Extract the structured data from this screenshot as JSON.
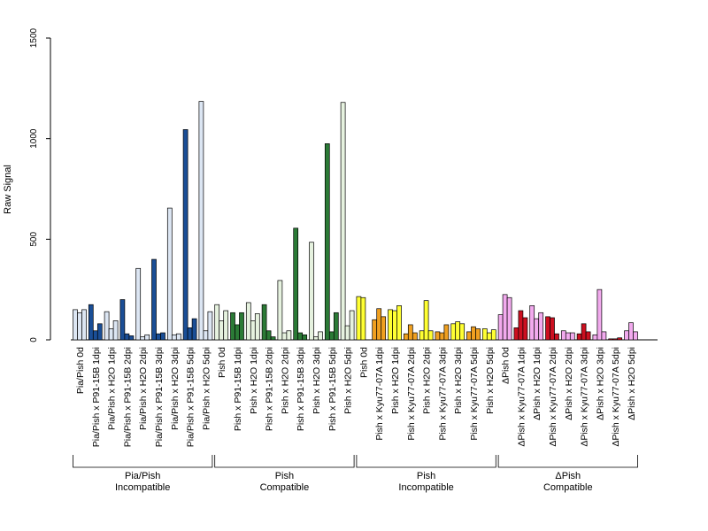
{
  "chart_data": {
    "type": "bar",
    "ylabel": "Raw Signal",
    "ylim": [
      0,
      1500
    ],
    "yticks": [
      0,
      500,
      1000,
      1500
    ],
    "grid": false,
    "categories": [
      "Pia/Pish 0d",
      "Pia/Pish x P91-15B 1dpi",
      "Pia/Pish x H2O 1dpi",
      "Pia/Pish x P91-15B 2dpi",
      "Pia/Pish x H2O 2dpi",
      "Pia/Pish x P91-15B 3dpi",
      "Pia/Pish x H2O 3dpi",
      "Pia/Pish x P91-15B 5dpi",
      "Pia/Pish x H2O 5dpi",
      "Pish 0d",
      "Pish x P91-15B 1dpi",
      "Pish x H2O 1dpi",
      "Pish x P91-15B 2dpi",
      "Pish x H2O 2dpi",
      "Pish x P91-15B 3dpi",
      "Pish x H2O 3dpi",
      "Pish x P91-15B 5dpi",
      "Pish x H2O 5dpi",
      "Pish 0d",
      "Pish x Kyu77-07A 1dpi",
      "Pish x H2O 1dpi",
      "Pish x Kyu77-07A 2dpi",
      "Pish x H2O 2dpi",
      "Pish x Kyu77-07A 3dpi",
      "Pish x H2O 3dpi",
      "Pish x Kyu77-07A 5dpi",
      "Pish x H2O 5dpi",
      "ΔPish 0d",
      "ΔPish x Kyu77-07A 1dpi",
      "ΔPish x H2O 1dpi",
      "ΔPish x Kyu77-07A 2dpi",
      "ΔPish x H2O 2dpi",
      "ΔPish x Kyu77-07A 3dpi",
      "ΔPish x H2O 3dpi",
      "ΔPish x Kyu77-07A 5dpi",
      "ΔPish x H2O 5dpi"
    ],
    "values": [
      [
        150,
        135,
        150
      ],
      [
        175,
        45,
        80
      ],
      [
        140,
        55,
        95
      ],
      [
        200,
        30,
        20
      ],
      [
        355,
        15,
        25
      ],
      [
        400,
        30,
        35
      ],
      [
        655,
        25,
        30
      ],
      [
        1045,
        60,
        105
      ],
      [
        1185,
        45,
        140
      ],
      [
        175,
        95,
        145
      ],
      [
        135,
        75,
        135
      ],
      [
        185,
        95,
        130
      ],
      [
        175,
        45,
        15
      ],
      [
        295,
        35,
        45
      ],
      [
        555,
        35,
        25
      ],
      [
        485,
        15,
        40
      ],
      [
        975,
        40,
        135
      ],
      [
        1180,
        70,
        145
      ],
      [
        215,
        210,
        0
      ],
      [
        100,
        155,
        115
      ],
      [
        150,
        145,
        170
      ],
      [
        30,
        75,
        35
      ],
      [
        45,
        195,
        45
      ],
      [
        40,
        35,
        75
      ],
      [
        80,
        90,
        80
      ],
      [
        40,
        65,
        55
      ],
      [
        55,
        35,
        50
      ],
      [
        125,
        225,
        210
      ],
      [
        60,
        145,
        110
      ],
      [
        170,
        105,
        135
      ],
      [
        115,
        110,
        30
      ],
      [
        45,
        35,
        35
      ],
      [
        30,
        80,
        40
      ],
      [
        25,
        250,
        40
      ],
      [
        5,
        5,
        10
      ],
      [
        45,
        85,
        40
      ]
    ],
    "category_colors": [
      "#dce6f3",
      "#1a4e96",
      "#dce6f3",
      "#1a4e96",
      "#dce6f3",
      "#1a4e96",
      "#dce6f3",
      "#1a4e96",
      "#dce6f3",
      "#e6f2df",
      "#2b7a36",
      "#e6f2df",
      "#2b7a36",
      "#e6f2df",
      "#2b7a36",
      "#e6f2df",
      "#2b7a36",
      "#e6f2df",
      "#ffff33",
      "#f0a020",
      "#ffff33",
      "#f0a020",
      "#ffff33",
      "#f0a020",
      "#ffff33",
      "#f0a020",
      "#ffff33",
      "#f2aaee",
      "#cc1020",
      "#f2aaee",
      "#cc1020",
      "#f2aaee",
      "#cc1020",
      "#f2aaee",
      "#cc1020",
      "#f2aaee"
    ],
    "groups": [
      {
        "line1": "Pia/Pish",
        "line2": "Incompatible",
        "start": 0,
        "end": 8
      },
      {
        "line1": "Pish",
        "line2": "Compatible",
        "start": 9,
        "end": 17
      },
      {
        "line1": "Pish",
        "line2": "Incompatible",
        "start": 18,
        "end": 26
      },
      {
        "line1": "ΔPish",
        "line2": "Compatible",
        "start": 27,
        "end": 35
      }
    ]
  }
}
